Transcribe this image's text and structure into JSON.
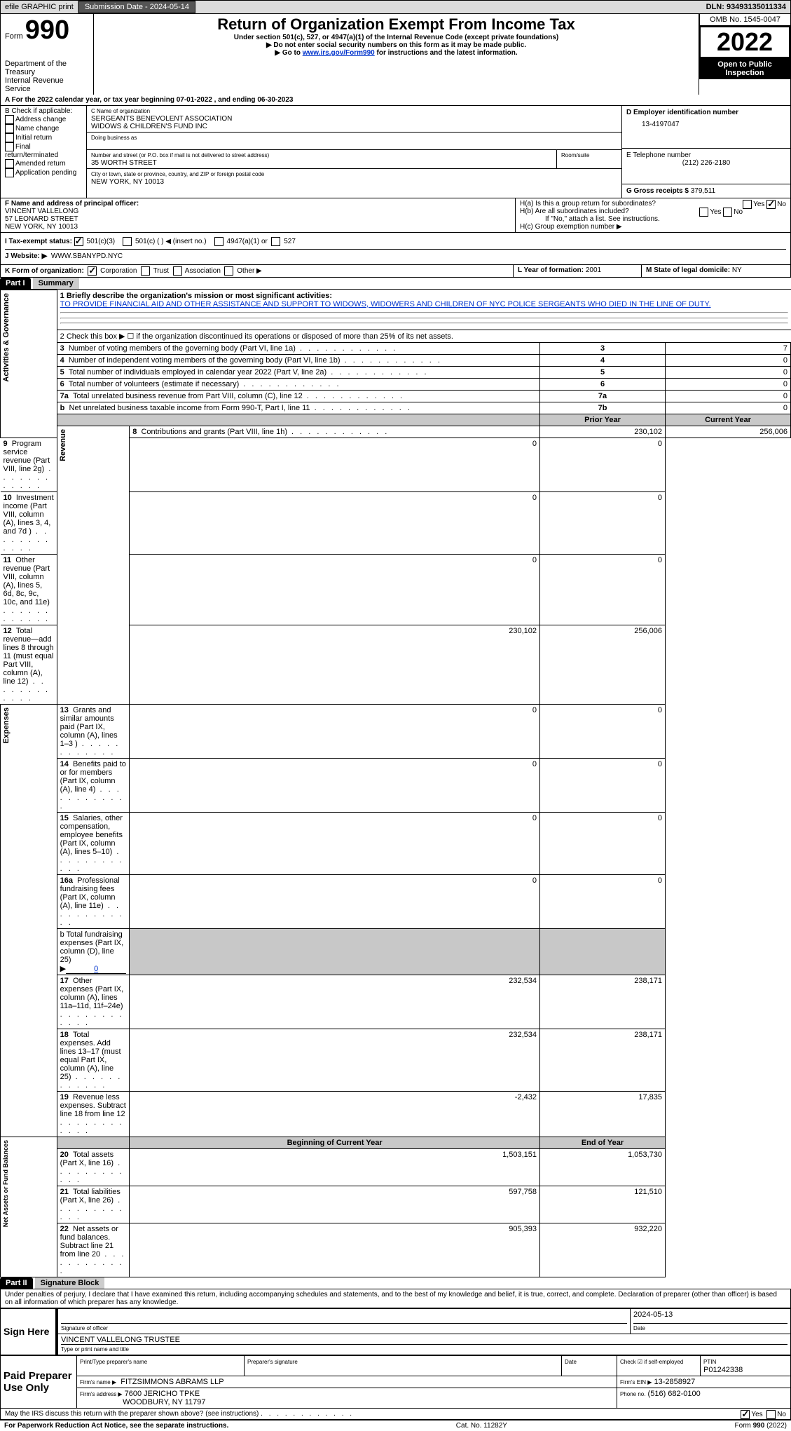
{
  "topbar": {
    "efile_label": "efile GRAPHIC print",
    "sub_date_label": "Submission Date - 2024-05-14",
    "dln_label": "DLN: 93493135011334"
  },
  "header": {
    "form_prefix": "Form",
    "form_num": "990",
    "title": "Return of Organization Exempt From Income Tax",
    "subtitle1": "Under section 501(c), 527, or 4947(a)(1) of the Internal Revenue Code (except private foundations)",
    "subtitle2": "▶ Do not enter social security numbers on this form as it may be made public.",
    "subtitle3_pre": "▶ Go to ",
    "subtitle3_link": "www.irs.gov/Form990",
    "subtitle3_post": " for instructions and the latest information.",
    "dept": "Department of the Treasury",
    "irs": "Internal Revenue Service",
    "omb": "OMB No. 1545-0047",
    "year": "2022",
    "inspect1": "Open to Public",
    "inspect2": "Inspection"
  },
  "lineA": "A For the 2022 calendar year, or tax year beginning 07-01-2022    , and ending 06-30-2023",
  "blockB": {
    "label": "B Check if applicable:",
    "opts": [
      "Address change",
      "Name change",
      "Initial return",
      "Final return/terminated",
      "Amended return",
      "Application pending"
    ]
  },
  "blockC": {
    "name_label": "C Name of organization",
    "name1": "SERGEANTS BENEVOLENT ASSOCIATION",
    "name2": "WIDOWS & CHILDREN'S FUND INC",
    "dba_label": "Doing business as",
    "street_label": "Number and street (or P.O. box if mail is not delivered to street address)",
    "room_label": "Room/suite",
    "street": "35 WORTH STREET",
    "city_label": "City or town, state or province, country, and ZIP or foreign postal code",
    "city": "NEW YORK, NY  10013"
  },
  "blockD": {
    "label": "D Employer identification number",
    "value": "13-4197047"
  },
  "blockE": {
    "label": "E Telephone number",
    "value": "(212) 226-2180"
  },
  "blockG": {
    "label": "G Gross receipts $",
    "value": "379,511"
  },
  "blockF": {
    "label": "F  Name and address of principal officer:",
    "name": "VINCENT VALLELONG",
    "street": "57 LEONARD STREET",
    "city": "NEW YORK, NY  10013"
  },
  "blockH": {
    "a": "H(a)  Is this a group return for subordinates?",
    "b": "H(b)  Are all subordinates included?",
    "b_note": "If \"No,\" attach a list. See instructions.",
    "c": "H(c)  Group exemption number ▶",
    "yes": "Yes",
    "no": "No"
  },
  "blockI": {
    "label": "I   Tax-exempt status:",
    "o1": "501(c)(3)",
    "o2": "501(c) (  ) ◀ (insert no.)",
    "o3": "4947(a)(1) or",
    "o4": "527"
  },
  "blockJ": {
    "label": "J   Website: ▶",
    "value": "WWW.SBANYPD.NYC"
  },
  "blockK": {
    "label": "K Form of organization:",
    "o1": "Corporation",
    "o2": "Trust",
    "o3": "Association",
    "o4": "Other ▶"
  },
  "blockL": {
    "label": "L Year of formation:",
    "value": "2001"
  },
  "blockM": {
    "label": "M State of legal domicile:",
    "value": "NY"
  },
  "part1": {
    "hdr": "Part I",
    "title": "Summary",
    "l1_label": "1   Briefly describe the organization's mission or most significant activities:",
    "l1_text": "TO PROVIDE FINANCIAL AID AND OTHER ASSISTANCE AND SUPPORT TO WIDOWS, WIDOWERS AND CHILDREN OF NYC POLICE SERGEANTS WHO DIED IN THE LINE OF DUTY.",
    "l2": "2    Check this box ▶ ☐ if the organization discontinued its operations or disposed of more than 25% of its net assets.",
    "side_ag": "Activities & Governance",
    "side_rev": "Revenue",
    "side_exp": "Expenses",
    "side_net": "Net Assets or Fund Balances",
    "rows_ag": [
      {
        "n": "3",
        "t": "Number of voting members of the governing body (Part VI, line 1a)",
        "box": "3",
        "v": "7"
      },
      {
        "n": "4",
        "t": "Number of independent voting members of the governing body (Part VI, line 1b)",
        "box": "4",
        "v": "0"
      },
      {
        "n": "5",
        "t": "Total number of individuals employed in calendar year 2022 (Part V, line 2a)",
        "box": "5",
        "v": "0"
      },
      {
        "n": "6",
        "t": "Total number of volunteers (estimate if necessary)",
        "box": "6",
        "v": "0"
      },
      {
        "n": "7a",
        "t": "Total unrelated business revenue from Part VIII, column (C), line 12",
        "box": "7a",
        "v": "0"
      },
      {
        "n": "b",
        "t": "Net unrelated business taxable income from Form 990-T, Part I, line 11",
        "box": "7b",
        "v": "0"
      }
    ],
    "hdr_prior": "Prior Year",
    "hdr_curr": "Current Year",
    "rows_rev": [
      {
        "n": "8",
        "t": "Contributions and grants (Part VIII, line 1h)",
        "p": "230,102",
        "c": "256,006"
      },
      {
        "n": "9",
        "t": "Program service revenue (Part VIII, line 2g)",
        "p": "0",
        "c": "0"
      },
      {
        "n": "10",
        "t": "Investment income (Part VIII, column (A), lines 3, 4, and 7d )",
        "p": "0",
        "c": "0"
      },
      {
        "n": "11",
        "t": "Other revenue (Part VIII, column (A), lines 5, 6d, 8c, 9c, 10c, and 11e)",
        "p": "0",
        "c": "0"
      },
      {
        "n": "12",
        "t": "Total revenue—add lines 8 through 11 (must equal Part VIII, column (A), line 12)",
        "p": "230,102",
        "c": "256,006"
      }
    ],
    "rows_exp": [
      {
        "n": "13",
        "t": "Grants and similar amounts paid (Part IX, column (A), lines 1–3 )",
        "p": "0",
        "c": "0"
      },
      {
        "n": "14",
        "t": "Benefits paid to or for members (Part IX, column (A), line 4)",
        "p": "0",
        "c": "0"
      },
      {
        "n": "15",
        "t": "Salaries, other compensation, employee benefits (Part IX, column (A), lines 5–10)",
        "p": "0",
        "c": "0"
      },
      {
        "n": "16a",
        "t": "Professional fundraising fees (Part IX, column (A), line 11e)",
        "p": "0",
        "c": "0"
      }
    ],
    "l16b_pre": "b  Total fundraising expenses (Part IX, column (D), line 25) ▶",
    "l16b_val": "0",
    "rows_exp2": [
      {
        "n": "17",
        "t": "Other expenses (Part IX, column (A), lines 11a–11d, 11f–24e)",
        "p": "232,534",
        "c": "238,171"
      },
      {
        "n": "18",
        "t": "Total expenses. Add lines 13–17 (must equal Part IX, column (A), line 25)",
        "p": "232,534",
        "c": "238,171"
      },
      {
        "n": "19",
        "t": "Revenue less expenses. Subtract line 18 from line 12",
        "p": "-2,432",
        "c": "17,835"
      }
    ],
    "hdr_begin": "Beginning of Current Year",
    "hdr_end": "End of Year",
    "rows_net": [
      {
        "n": "20",
        "t": "Total assets (Part X, line 16)",
        "p": "1,503,151",
        "c": "1,053,730"
      },
      {
        "n": "21",
        "t": "Total liabilities (Part X, line 26)",
        "p": "597,758",
        "c": "121,510"
      },
      {
        "n": "22",
        "t": "Net assets or fund balances. Subtract line 21 from line 20",
        "p": "905,393",
        "c": "932,220"
      }
    ]
  },
  "part2": {
    "hdr": "Part II",
    "title": "Signature Block",
    "decl": "Under penalties of perjury, I declare that I have examined this return, including accompanying schedules and statements, and to the best of my knowledge and belief, it is true, correct, and complete. Declaration of preparer (other than officer) is based on all information of which preparer has any knowledge.",
    "sign_here": "Sign Here",
    "sig_officer": "Signature of officer",
    "sig_date_label": "Date",
    "sig_date": "2024-05-13",
    "officer_name": "VINCENT VALLELONG  TRUSTEE",
    "officer_sub": "Type or print name and title",
    "paid_hdr": "Paid Preparer Use Only",
    "prep_name_lbl": "Print/Type preparer's name",
    "prep_sig_lbl": "Preparer's signature",
    "prep_date_lbl": "Date",
    "prep_check_lbl": "Check ☑ if self-employed",
    "ptin_lbl": "PTIN",
    "ptin": "P01242338",
    "firm_name_lbl": "Firm's name      ▶",
    "firm_name": "FITZSIMMONS ABRAMS LLP",
    "firm_ein_lbl": "Firm's EIN ▶",
    "firm_ein": "13-2858927",
    "firm_addr_lbl": "Firm's address ▶",
    "firm_addr1": "7600 JERICHO TPKE",
    "firm_addr2": "WOODBURY, NY  11797",
    "phone_lbl": "Phone no.",
    "phone": "(516) 682-0100",
    "discuss": "May the IRS discuss this return with the preparer shown above? (see instructions)",
    "yes": "Yes",
    "no": "No"
  },
  "footer": {
    "l": "For Paperwork Reduction Act Notice, see the separate instructions.",
    "c": "Cat. No. 11282Y",
    "r": "Form 990 (2022)"
  },
  "colors": {
    "shade": "#c8c8c8",
    "link": "#0033cc"
  }
}
